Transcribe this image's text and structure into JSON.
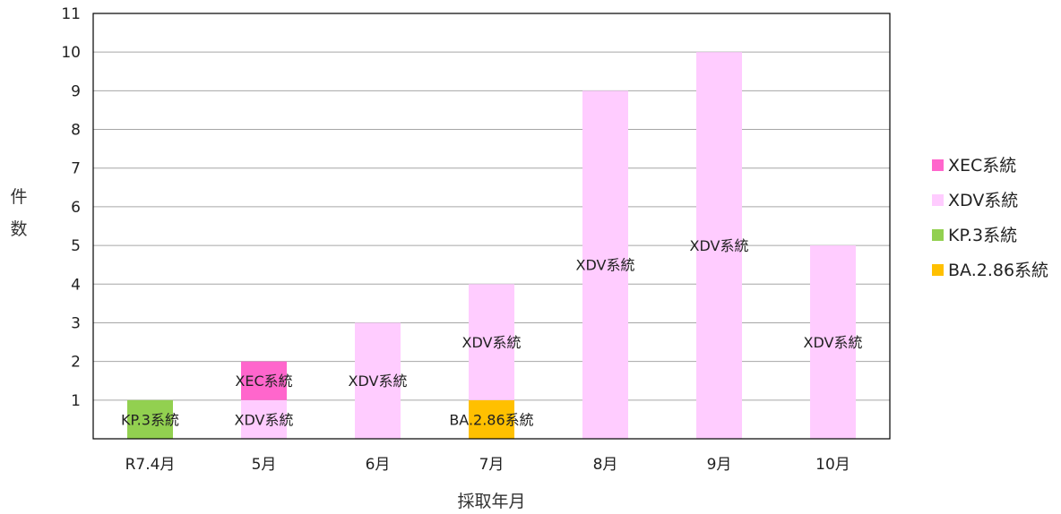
{
  "chart_data": {
    "type": "bar",
    "stacked": true,
    "categories": [
      "R7.4月",
      "5月",
      "6月",
      "7月",
      "8月",
      "9月",
      "10月"
    ],
    "series": [
      {
        "name": "BA.2.86系統",
        "color": "#ffc000",
        "values": [
          0,
          0,
          0,
          1,
          0,
          0,
          0
        ]
      },
      {
        "name": "KP.3系統",
        "color": "#92d050",
        "values": [
          1,
          0,
          0,
          0,
          0,
          0,
          0
        ]
      },
      {
        "name": "XDV系統",
        "color": "#ffccff",
        "values": [
          0,
          1,
          3,
          3,
          9,
          10,
          5
        ]
      },
      {
        "name": "XEC系統",
        "color": "#ff66cc",
        "values": [
          0,
          1,
          0,
          0,
          0,
          0,
          0
        ]
      }
    ],
    "legend_order": [
      "XEC系統",
      "XDV系統",
      "KP.3系統",
      "BA.2.86系統"
    ],
    "legend_position": "right",
    "xlabel": "採取年月",
    "ylabel": "件数",
    "ylim": [
      0,
      11
    ],
    "yticks": [
      1,
      2,
      3,
      4,
      5,
      6,
      7,
      8,
      9,
      10,
      11
    ],
    "grid": true
  }
}
